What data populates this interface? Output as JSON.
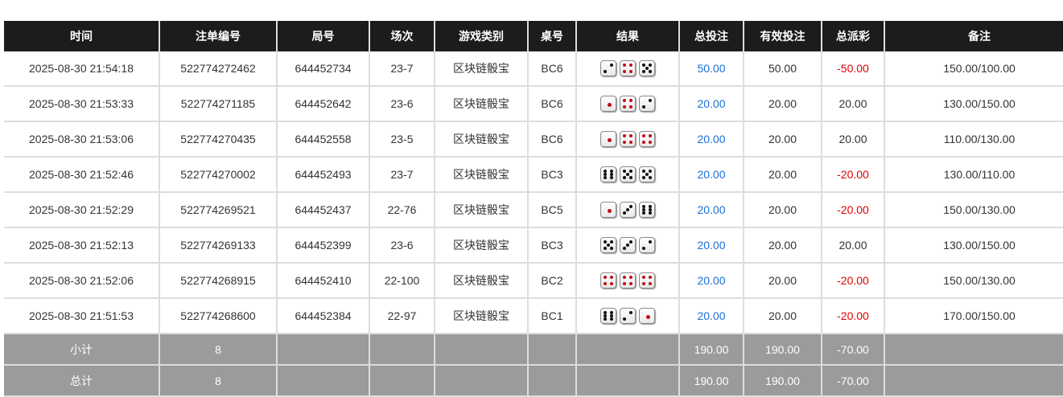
{
  "headers": [
    "时间",
    "注单编号",
    "局号",
    "场次",
    "游戏类别",
    "桌号",
    "结果",
    "总投注",
    "有效投注",
    "总派彩",
    "备注"
  ],
  "rows": [
    {
      "time": "2025-08-30 21:54:18",
      "bet_id": "522774272462",
      "round": "644452734",
      "session": "23-7",
      "game": "区块链骰宝",
      "table": "BC6",
      "dice": [
        2,
        4,
        5
      ],
      "total_bet": "50.00",
      "valid_bet": "50.00",
      "payout": "-50.00",
      "note": "150.00/100.00"
    },
    {
      "time": "2025-08-30 21:53:33",
      "bet_id": "522774271185",
      "round": "644452642",
      "session": "23-6",
      "game": "区块链骰宝",
      "table": "BC6",
      "dice": [
        1,
        4,
        2
      ],
      "total_bet": "20.00",
      "valid_bet": "20.00",
      "payout": "20.00",
      "note": "130.00/150.00"
    },
    {
      "time": "2025-08-30 21:53:06",
      "bet_id": "522774270435",
      "round": "644452558",
      "session": "23-5",
      "game": "区块链骰宝",
      "table": "BC6",
      "dice": [
        1,
        4,
        4
      ],
      "total_bet": "20.00",
      "valid_bet": "20.00",
      "payout": "20.00",
      "note": "110.00/130.00"
    },
    {
      "time": "2025-08-30 21:52:46",
      "bet_id": "522774270002",
      "round": "644452493",
      "session": "23-7",
      "game": "区块链骰宝",
      "table": "BC3",
      "dice": [
        6,
        5,
        5
      ],
      "total_bet": "20.00",
      "valid_bet": "20.00",
      "payout": "-20.00",
      "note": "130.00/110.00"
    },
    {
      "time": "2025-08-30 21:52:29",
      "bet_id": "522774269521",
      "round": "644452437",
      "session": "22-76",
      "game": "区块链骰宝",
      "table": "BC5",
      "dice": [
        1,
        3,
        6
      ],
      "total_bet": "20.00",
      "valid_bet": "20.00",
      "payout": "-20.00",
      "note": "150.00/130.00"
    },
    {
      "time": "2025-08-30 21:52:13",
      "bet_id": "522774269133",
      "round": "644452399",
      "session": "23-6",
      "game": "区块链骰宝",
      "table": "BC3",
      "dice": [
        5,
        3,
        2
      ],
      "total_bet": "20.00",
      "valid_bet": "20.00",
      "payout": "20.00",
      "note": "130.00/150.00"
    },
    {
      "time": "2025-08-30 21:52:06",
      "bet_id": "522774268915",
      "round": "644452410",
      "session": "22-100",
      "game": "区块链骰宝",
      "table": "BC2",
      "dice": [
        4,
        4,
        4
      ],
      "total_bet": "20.00",
      "valid_bet": "20.00",
      "payout": "-20.00",
      "note": "150.00/130.00"
    },
    {
      "time": "2025-08-30 21:51:53",
      "bet_id": "522774268600",
      "round": "644452384",
      "session": "22-97",
      "game": "区块链骰宝",
      "table": "BC1",
      "dice": [
        6,
        2,
        1
      ],
      "total_bet": "20.00",
      "valid_bet": "20.00",
      "payout": "-20.00",
      "note": "170.00/150.00"
    }
  ],
  "subtotal": {
    "label": "小计",
    "count": "8",
    "total_bet": "190.00",
    "valid_bet": "190.00",
    "payout": "-70.00"
  },
  "total": {
    "label": "总计",
    "count": "8",
    "total_bet": "190.00",
    "valid_bet": "190.00",
    "payout": "-70.00"
  },
  "colors": {
    "header_bg": "#1c1c1c",
    "summary_bg": "#9b9b9b",
    "bet_blue": "#1a6fd6",
    "loss_red": "#e00000",
    "pip_red": "#c0101a"
  }
}
